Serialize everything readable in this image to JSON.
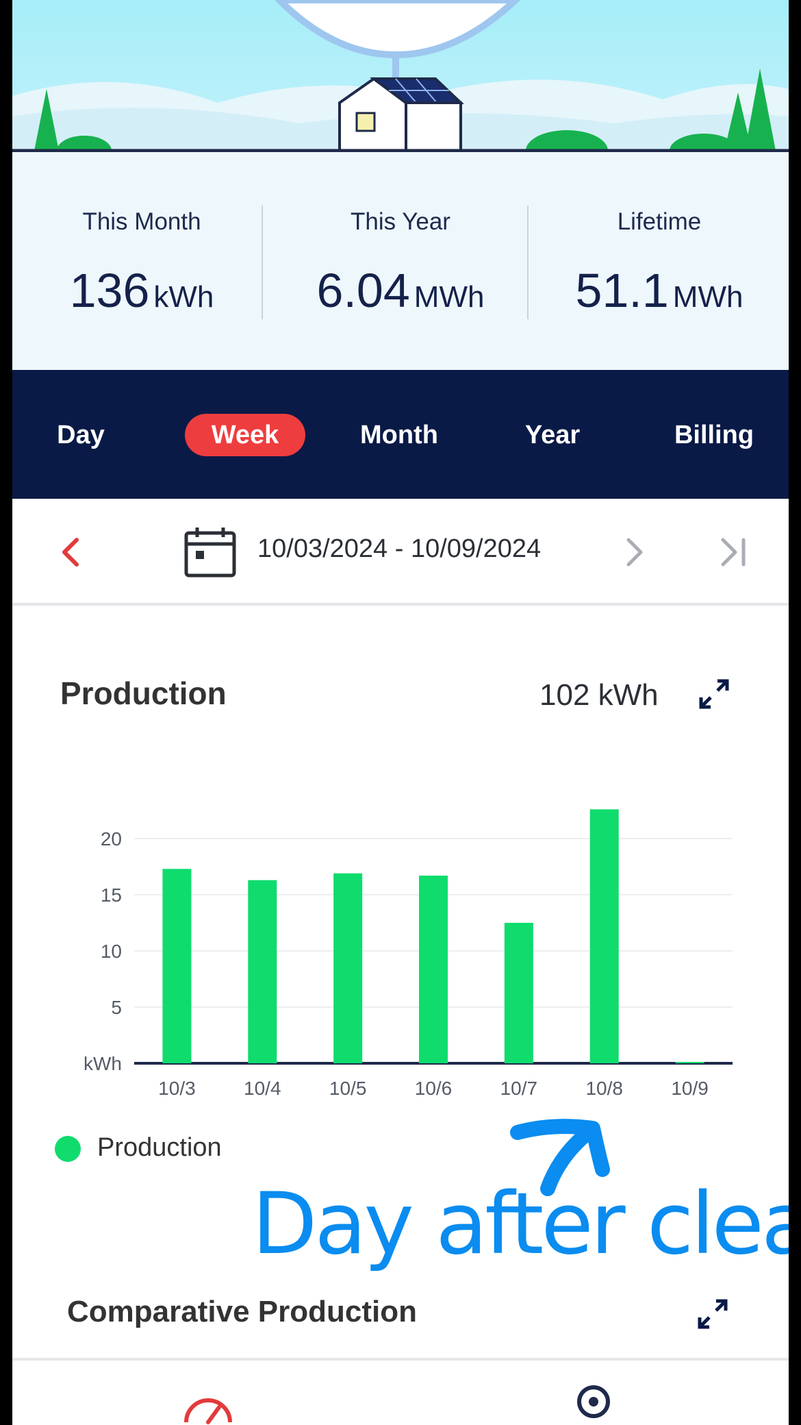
{
  "stats": [
    {
      "label": "This Month",
      "value": "136",
      "unit": "kWh"
    },
    {
      "label": "This Year",
      "value": "6.04",
      "unit": "MWh"
    },
    {
      "label": "Lifetime",
      "value": "51.1",
      "unit": "MWh"
    }
  ],
  "tabs": [
    {
      "label": "Day",
      "active": false
    },
    {
      "label": "Week",
      "active": true
    },
    {
      "label": "Month",
      "active": false
    },
    {
      "label": "Year",
      "active": false
    },
    {
      "label": "Billing",
      "active": false
    }
  ],
  "date_range": "10/03/2024 - 10/09/2024",
  "production": {
    "title": "Production",
    "total": "102 kWh",
    "legend": "Production"
  },
  "annotation": "Day after clean",
  "comparative_title": "Comparative Production",
  "colors": {
    "bar": "#0fdc6d",
    "accent": "#ee3d3f",
    "nav": "#0a1a46",
    "annotation": "#0a8cf0"
  },
  "icons": {
    "prev": "chevron-left-icon",
    "calendar": "calendar-icon",
    "next": "chevron-right-icon",
    "last": "skip-to-end-icon",
    "expand": "expand-icon"
  },
  "chart_data": {
    "type": "bar",
    "categories": [
      "10/3",
      "10/4",
      "10/5",
      "10/6",
      "10/7",
      "10/8",
      "10/9"
    ],
    "series": [
      {
        "name": "Production",
        "values": [
          17.3,
          16.3,
          16.9,
          16.7,
          12.5,
          22.6,
          0
        ]
      }
    ],
    "ylabel": "kWh",
    "yticks": [
      5,
      10,
      15,
      20
    ],
    "ylim": [
      0,
      23
    ],
    "grid": true,
    "legend": "bottom-left"
  }
}
